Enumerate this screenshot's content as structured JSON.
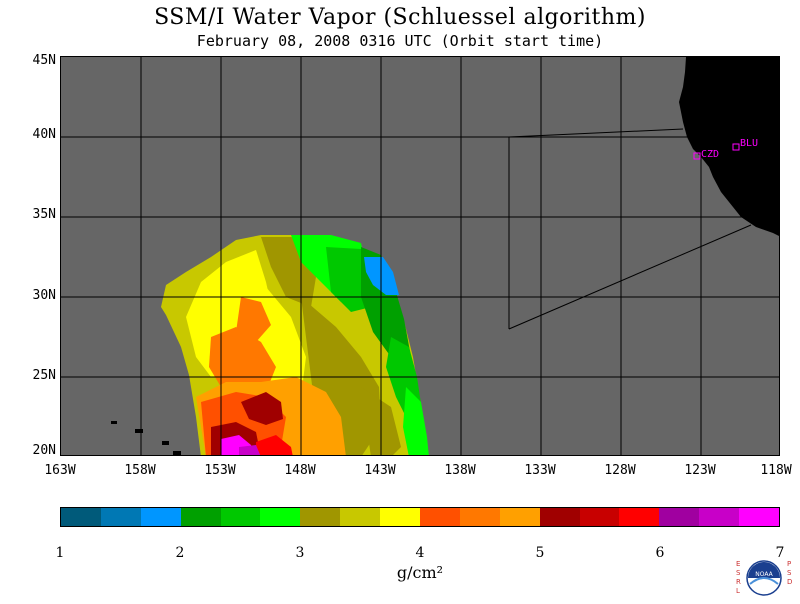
{
  "title": "SSM/I Water Vapor (Schluessel algorithm)",
  "subtitle": "February 08, 2008  0316 UTC  (Orbit start time)",
  "map": {
    "lat_labels": [
      "45N",
      "40N",
      "35N",
      "30N",
      "25N",
      "20N"
    ],
    "lon_labels": [
      "163W",
      "158W",
      "153W",
      "148W",
      "143W",
      "138W",
      "133W",
      "128W",
      "123W",
      "118W"
    ],
    "stations": [
      {
        "code": "CZD",
        "color": "#ff00ff"
      },
      {
        "code": "BLU",
        "color": "#ff00ff"
      }
    ],
    "ocean_no_data_color": "#666666",
    "land_color": "#000000"
  },
  "colorbar": {
    "ticks": [
      "1",
      "2",
      "3",
      "4",
      "5",
      "6",
      "7"
    ],
    "unit": "g/cm²",
    "colors": [
      "#005a7a",
      "#0078b4",
      "#0096ff",
      "#00a000",
      "#00c800",
      "#00ff00",
      "#a09600",
      "#c8c800",
      "#ffff00",
      "#ff5000",
      "#ff7800",
      "#ffa000",
      "#a00000",
      "#c80000",
      "#ff0000",
      "#a000a0",
      "#c800c8",
      "#ff00ff"
    ]
  },
  "logo": {
    "left_letters": "ESRL",
    "right_letters": "PSD",
    "name": "NOAA"
  }
}
